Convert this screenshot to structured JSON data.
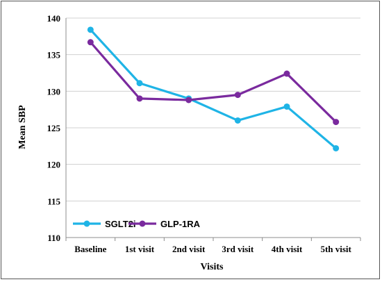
{
  "chart_data": {
    "type": "line",
    "categories": [
      "Baseline",
      "1st visit",
      "2nd visit",
      "3rd visit",
      "4th visit",
      "5th visit"
    ],
    "series": [
      {
        "name": "SGLT2i",
        "color": "#1fb4e6",
        "values": [
          138.4,
          131.1,
          129.0,
          126.0,
          127.9,
          122.2
        ]
      },
      {
        "name": "GLP-1RA",
        "color": "#7a2a9e",
        "values": [
          136.7,
          129.0,
          128.8,
          129.5,
          132.4,
          125.8
        ]
      }
    ],
    "title": "",
    "xlabel": "Visits",
    "ylabel": "Mean SBP",
    "ylim": [
      110,
      140
    ],
    "yticks": [
      110,
      115,
      120,
      125,
      130,
      135,
      140
    ],
    "grid": true,
    "legend_position": "bottom-left"
  }
}
